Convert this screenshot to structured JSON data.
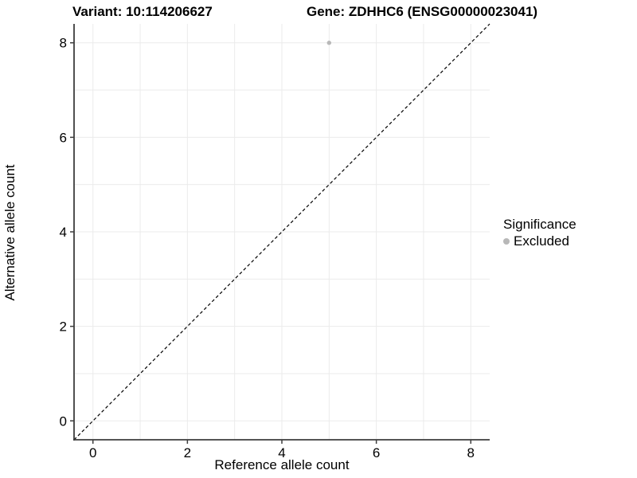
{
  "titles": {
    "variant": "Variant: 10:114206627",
    "gene": "Gene: ZDHHC6 (ENSG00000023041)"
  },
  "legend": {
    "title": "Significance",
    "items": [
      {
        "label": "Excluded",
        "color": "#b8b8b8"
      }
    ],
    "position": "right"
  },
  "chart_data": {
    "type": "scatter",
    "title_left": "Variant: 10:114206627",
    "title_right": "Gene: ZDHHC6 (ENSG00000023041)",
    "xlabel": "Reference allele count",
    "ylabel": "Alternative allele count",
    "xlim": [
      -0.4,
      8.4
    ],
    "ylim": [
      -0.4,
      8.4
    ],
    "xticks": [
      0,
      2,
      4,
      6,
      8
    ],
    "yticks": [
      0,
      2,
      4,
      6,
      8
    ],
    "grid": {
      "on": true,
      "interval": 1,
      "min": 0,
      "max": 8,
      "color": "#ebebeb"
    },
    "series": [
      {
        "name": "Excluded",
        "color": "#b8b8b8",
        "points": [
          {
            "x": 5,
            "y": 8
          }
        ]
      }
    ],
    "reference_line": {
      "type": "identity y=x",
      "x1": -0.4,
      "y1": -0.4,
      "x2": 8.4,
      "y2": 8.4,
      "style": "dashed",
      "color": "#000000"
    },
    "axis_color": "#3d3d3d",
    "tick_label_color": "#000000",
    "background": "#ffffff"
  }
}
